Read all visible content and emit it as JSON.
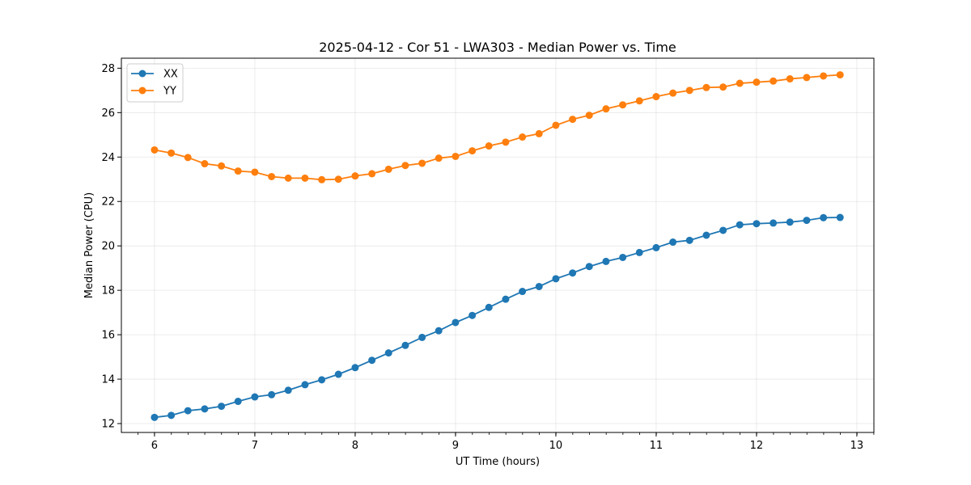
{
  "chart_data": {
    "type": "line",
    "title": "2025-04-12 - Cor 51 - LWA303 - Median Power vs. Time",
    "xlabel": "UT Time (hours)",
    "ylabel": "Median Power (CPU)",
    "xlim": [
      5.67,
      13.17
    ],
    "ylim": [
      11.6,
      28.45
    ],
    "xticks": [
      6,
      7,
      8,
      9,
      10,
      11,
      12,
      13
    ],
    "yticks": [
      12,
      14,
      16,
      18,
      20,
      22,
      24,
      26,
      28
    ],
    "x_minor_step": 0.1667,
    "grid": true,
    "legend_position": "upper-left",
    "x": [
      6.0,
      6.167,
      6.333,
      6.5,
      6.667,
      6.833,
      7.0,
      7.167,
      7.333,
      7.5,
      7.667,
      7.833,
      8.0,
      8.167,
      8.333,
      8.5,
      8.667,
      8.833,
      9.0,
      9.167,
      9.333,
      9.5,
      9.667,
      9.833,
      10.0,
      10.167,
      10.333,
      10.5,
      10.667,
      10.833,
      11.0,
      11.167,
      11.333,
      11.5,
      11.667,
      11.833,
      12.0,
      12.167,
      12.333,
      12.5,
      12.667,
      12.833
    ],
    "series": [
      {
        "name": "XX",
        "color": "#1f77b4",
        "values": [
          12.28,
          12.37,
          12.58,
          12.66,
          12.78,
          13.0,
          13.2,
          13.3,
          13.5,
          13.75,
          13.97,
          14.22,
          14.52,
          14.85,
          15.18,
          15.52,
          15.88,
          16.18,
          16.55,
          16.87,
          17.23,
          17.6,
          17.95,
          18.17,
          18.52,
          18.78,
          19.07,
          19.3,
          19.48,
          19.7,
          19.92,
          20.17,
          20.25,
          20.48,
          20.7,
          20.95,
          21.0,
          21.03,
          21.07,
          21.15,
          21.27,
          21.28
        ]
      },
      {
        "name": "YY",
        "color": "#ff7f0e",
        "values": [
          24.32,
          24.18,
          23.98,
          23.7,
          23.6,
          23.37,
          23.32,
          23.12,
          23.05,
          23.05,
          22.98,
          23.0,
          23.15,
          23.25,
          23.45,
          23.62,
          23.72,
          23.95,
          24.03,
          24.28,
          24.5,
          24.67,
          24.9,
          25.05,
          25.43,
          25.7,
          25.88,
          26.17,
          26.35,
          26.53,
          26.72,
          26.88,
          27.0,
          27.13,
          27.15,
          27.32,
          27.37,
          27.42,
          27.52,
          27.58,
          27.65,
          27.7
        ]
      }
    ]
  }
}
